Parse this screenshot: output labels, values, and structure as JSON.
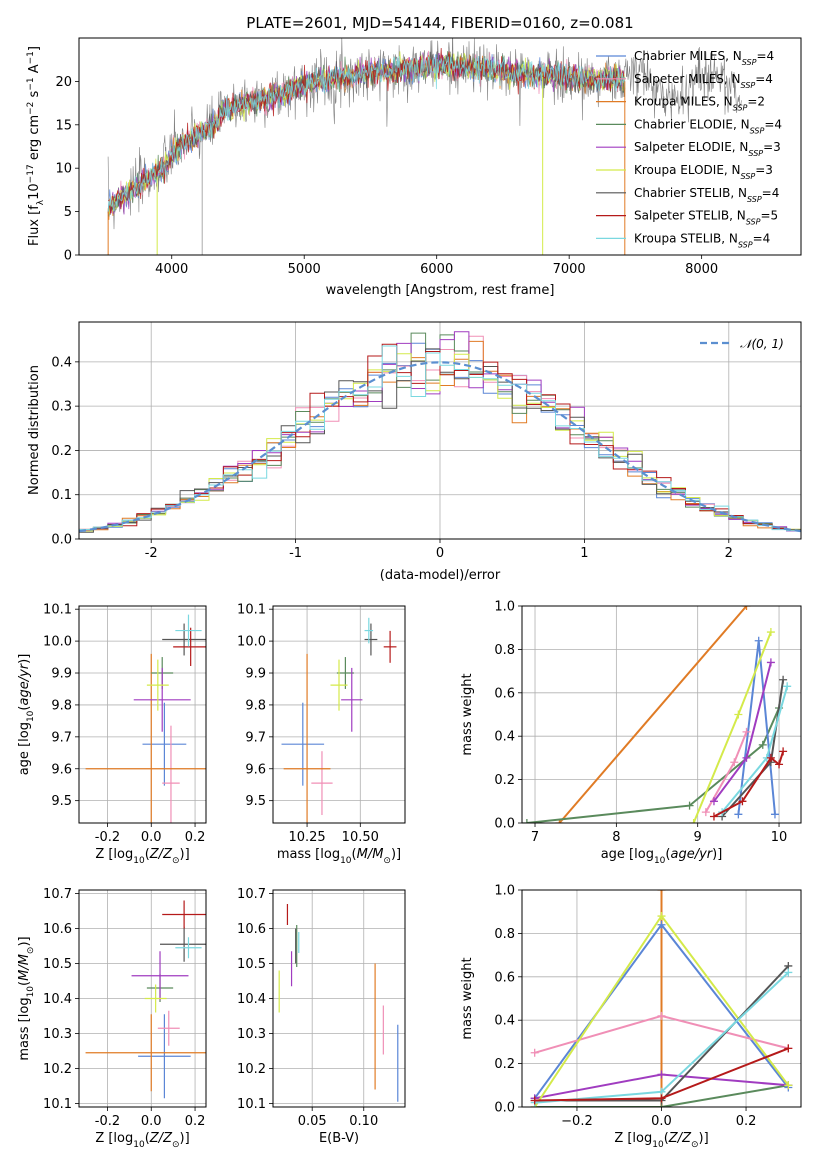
{
  "title": "PLATE=2601, MJD=54144, FIBERID=0160, z=0.081",
  "colors": {
    "chabrier_miles": "#5b86d6",
    "salpeter_miles": "#f08fb6",
    "kroupa_miles": "#e07b25",
    "chabrier_elodie": "#5a8a5c",
    "salpeter_elodie": "#a03cc0",
    "kroupa_elodie": "#d4ea4a",
    "chabrier_stelib": "#555555",
    "salpeter_stelib": "#b51a1a",
    "kroupa_stelib": "#7ad8e0",
    "normal": "#5b8fd0",
    "grid": "#b0b0b0"
  },
  "models": [
    "Chabrier MILES",
    "Salpeter MILES",
    "Kroupa MILES",
    "Chabrier ELODIE",
    "Salpeter ELODIE",
    "Kroupa ELODIE",
    "Chabrier STELIB",
    "Salpeter STELIB",
    "Kroupa STELIB"
  ],
  "chart_data": [
    {
      "id": "spectrum",
      "type": "line",
      "title": "PLATE=2601, MJD=54144, FIBERID=0160, z=0.081",
      "xlabel": "wavelength [Angstrom, rest frame]",
      "ylabel": "Flux [fλ10⁻¹⁷ erg cm⁻² s⁻¹ A⁻¹]",
      "xlim": [
        3300,
        8750
      ],
      "ylim": [
        0,
        25
      ],
      "xticks": [
        4000,
        5000,
        6000,
        7000,
        8000
      ],
      "yticks": [
        0,
        5,
        10,
        15,
        20
      ],
      "legend_position": "right",
      "grid": false,
      "legend": [
        "Chabrier MILES, N_SSP=4",
        "Salpeter MILES, N_SSP=4",
        "Kroupa MILES, N_SSP=2",
        "Chabrier ELODIE, N_SSP=4",
        "Salpeter ELODIE, N_SSP=3",
        "Kroupa ELODIE, N_SSP=3",
        "Chabrier STELIB, N_SSP=4",
        "Salpeter STELIB, N_SSP=5",
        "Kroupa STELIB, N_SSP=4"
      ],
      "continuum": {
        "x": [
          3520,
          3600,
          3700,
          3800,
          3900,
          4000,
          4100,
          4200,
          4300,
          4400,
          4500,
          4700,
          4900,
          5100,
          5300,
          5500,
          5700,
          5900,
          6100,
          6300,
          6500,
          6700,
          6900,
          7100,
          7300,
          7420
        ],
        "y": [
          5.5,
          6.5,
          7.5,
          8.5,
          9.5,
          11.5,
          13.0,
          13.8,
          14.8,
          16.5,
          17.3,
          18.0,
          19.0,
          20.0,
          20.5,
          21.0,
          21.3,
          21.7,
          21.9,
          21.5,
          21.2,
          20.8,
          20.7,
          20.3,
          20.2,
          20.1
        ]
      }
    },
    {
      "id": "residuals",
      "type": "area",
      "xlabel": "(data-model)/error",
      "ylabel": "Normed distribution",
      "xlim": [
        -2.5,
        2.5
      ],
      "ylim": [
        0,
        0.49
      ],
      "xticks": [
        -2,
        -1,
        0,
        1,
        2
      ],
      "yticks": [
        0.0,
        0.1,
        0.2,
        0.3,
        0.4
      ],
      "legend": [
        "𝒩(0, 1)"
      ],
      "legend_position": "top-right",
      "grid": true,
      "bin_width": 0.1
    },
    {
      "id": "age_vs_z",
      "type": "scatter",
      "xlabel": "Z [log10(Z/Z⊙)]",
      "ylabel": "age  [log10(age/yr)]",
      "xlim": [
        -0.33,
        0.25
      ],
      "ylim": [
        9.43,
        10.11
      ],
      "xticks": [
        -0.2,
        0.0,
        0.2
      ],
      "yticks": [
        9.5,
        9.6,
        9.7,
        9.8,
        9.9,
        10.0,
        10.1
      ],
      "grid": true,
      "points": [
        {
          "x": 0.06,
          "xerr": 0.1,
          "y": 9.677,
          "yerr": 0.13,
          "color": "#5b86d6"
        },
        {
          "x": 0.09,
          "xerr": 0.04,
          "y": 9.555,
          "yerr": 0.18,
          "color": "#f08fb6"
        },
        {
          "x": 0.0,
          "xerr": 0.3,
          "y": 9.6,
          "yerr": 0.36,
          "color": "#e07b25"
        },
        {
          "x": 0.05,
          "xerr": 0.05,
          "y": 9.9,
          "yerr": 0.05,
          "color": "#5a8a5c"
        },
        {
          "x": 0.05,
          "xerr": 0.13,
          "y": 9.816,
          "yerr": 0.1,
          "color": "#a03cc0"
        },
        {
          "x": 0.03,
          "xerr": 0.05,
          "y": 9.862,
          "yerr": 0.08,
          "color": "#d4ea4a"
        },
        {
          "x": 0.15,
          "xerr": 0.1,
          "y": 10.005,
          "yerr": 0.05,
          "color": "#555555"
        },
        {
          "x": 0.18,
          "xerr": 0.08,
          "y": 9.982,
          "yerr": 0.06,
          "color": "#b51a1a"
        },
        {
          "x": 0.17,
          "xerr": 0.06,
          "y": 10.033,
          "yerr": 0.05,
          "color": "#7ad8e0"
        }
      ]
    },
    {
      "id": "age_vs_mass",
      "type": "scatter",
      "xlabel": "mass [log10(M/M⊙)]",
      "xlim": [
        10.09,
        10.71
      ],
      "ylim": [
        9.43,
        10.11
      ],
      "xticks": [
        10.25,
        10.5
      ],
      "yticks": [
        9.5,
        9.6,
        9.7,
        9.8,
        9.9,
        10.0,
        10.1
      ],
      "grid": true,
      "points": [
        {
          "x": 10.23,
          "xerr": 0.1,
          "y": 9.677,
          "yerr": 0.13,
          "color": "#5b86d6"
        },
        {
          "x": 10.32,
          "xerr": 0.05,
          "y": 9.555,
          "yerr": 0.1,
          "color": "#f08fb6"
        },
        {
          "x": 10.25,
          "xerr": 0.11,
          "y": 9.6,
          "yerr": 0.36,
          "color": "#e07b25"
        },
        {
          "x": 10.43,
          "xerr": 0.04,
          "y": 9.9,
          "yerr": 0.05,
          "color": "#5a8a5c"
        },
        {
          "x": 10.46,
          "xerr": 0.05,
          "y": 9.816,
          "yerr": 0.1,
          "color": "#a03cc0"
        },
        {
          "x": 10.4,
          "xerr": 0.04,
          "y": 9.862,
          "yerr": 0.08,
          "color": "#d4ea4a"
        },
        {
          "x": 10.55,
          "xerr": 0.03,
          "y": 10.005,
          "yerr": 0.05,
          "color": "#555555"
        },
        {
          "x": 10.64,
          "xerr": 0.03,
          "y": 9.982,
          "yerr": 0.05,
          "color": "#b51a1a"
        },
        {
          "x": 10.54,
          "xerr": 0.02,
          "y": 10.033,
          "yerr": 0.04,
          "color": "#7ad8e0"
        }
      ]
    },
    {
      "id": "weights_vs_age",
      "type": "line",
      "xlabel": "age  [log10(age/yr)]",
      "ylabel": "mass weight",
      "xlim": [
        6.84,
        10.27
      ],
      "ylim": [
        0,
        1
      ],
      "xticks": [
        7,
        8,
        9,
        10
      ],
      "yticks": [
        0.0,
        0.2,
        0.4,
        0.6,
        0.8,
        1.0
      ],
      "grid": true,
      "series": [
        {
          "color": "#e07b25",
          "points": [
            [
              7.3,
              0.0
            ],
            [
              9.6,
              1.0
            ]
          ]
        },
        {
          "color": "#5a8a5c",
          "points": [
            [
              6.9,
              0.0
            ],
            [
              8.9,
              0.08
            ],
            [
              9.8,
              0.36
            ],
            [
              10.0,
              0.53
            ]
          ]
        },
        {
          "color": "#5b86d6",
          "points": [
            [
              9.5,
              0.04
            ],
            [
              9.75,
              0.84
            ],
            [
              9.95,
              0.04
            ]
          ]
        },
        {
          "color": "#f08fb6",
          "points": [
            [
              9.1,
              0.05
            ],
            [
              9.45,
              0.28
            ],
            [
              9.6,
              0.42
            ]
          ]
        },
        {
          "color": "#a03cc0",
          "points": [
            [
              9.2,
              0.1
            ],
            [
              9.6,
              0.3
            ],
            [
              9.9,
              0.74
            ]
          ]
        },
        {
          "color": "#d4ea4a",
          "points": [
            [
              8.95,
              0.0
            ],
            [
              9.5,
              0.5
            ],
            [
              9.9,
              0.88
            ]
          ]
        },
        {
          "color": "#555555",
          "points": [
            [
              9.3,
              0.03
            ],
            [
              9.9,
              0.28
            ],
            [
              10.05,
              0.66
            ]
          ]
        },
        {
          "color": "#7ad8e0",
          "points": [
            [
              9.3,
              0.05
            ],
            [
              9.85,
              0.3
            ],
            [
              10.1,
              0.63
            ]
          ]
        },
        {
          "color": "#b51a1a",
          "points": [
            [
              9.2,
              0.03
            ],
            [
              9.55,
              0.1
            ],
            [
              9.9,
              0.3
            ],
            [
              10.0,
              0.27
            ],
            [
              10.05,
              0.33
            ]
          ]
        }
      ]
    },
    {
      "id": "mass_vs_z",
      "type": "scatter",
      "xlabel": "Z [log10(Z/Z⊙)]",
      "ylabel": "mass [log10(M/M⊙)]",
      "xlim": [
        -0.33,
        0.25
      ],
      "ylim": [
        10.09,
        10.71
      ],
      "xticks": [
        -0.2,
        0.0,
        0.2
      ],
      "yticks": [
        10.1,
        10.2,
        10.3,
        10.4,
        10.5,
        10.6,
        10.7
      ],
      "grid": true,
      "points": [
        {
          "x": 0.06,
          "xerr": 0.12,
          "y": 10.235,
          "yerr": 0.12,
          "color": "#5b86d6"
        },
        {
          "x": 0.08,
          "xerr": 0.05,
          "y": 10.315,
          "yerr": 0.05,
          "color": "#f08fb6"
        },
        {
          "x": 0.0,
          "xerr": 0.3,
          "y": 10.245,
          "yerr": 0.11,
          "color": "#e07b25"
        },
        {
          "x": 0.04,
          "xerr": 0.06,
          "y": 10.43,
          "yerr": 0.04,
          "color": "#5a8a5c"
        },
        {
          "x": 0.04,
          "xerr": 0.13,
          "y": 10.465,
          "yerr": 0.07,
          "color": "#a03cc0"
        },
        {
          "x": 0.02,
          "xerr": 0.05,
          "y": 10.4,
          "yerr": 0.04,
          "color": "#d4ea4a"
        },
        {
          "x": 0.15,
          "xerr": 0.11,
          "y": 10.555,
          "yerr": 0.05,
          "color": "#555555"
        },
        {
          "x": 0.15,
          "xerr": 0.1,
          "y": 10.64,
          "yerr": 0.04,
          "color": "#b51a1a"
        },
        {
          "x": 0.17,
          "xerr": 0.06,
          "y": 10.545,
          "yerr": 0.03,
          "color": "#7ad8e0"
        }
      ]
    },
    {
      "id": "mass_vs_ebv",
      "type": "scatter",
      "xlabel": "E(B-V)",
      "xlim": [
        0.012,
        0.14
      ],
      "ylim": [
        10.09,
        10.71
      ],
      "xticks": [
        0.05,
        0.1
      ],
      "yticks": [
        10.1,
        10.2,
        10.3,
        10.4,
        10.5,
        10.6,
        10.7
      ],
      "grid": true,
      "points": [
        {
          "x": 0.133,
          "y": 10.215,
          "yerr": 0.11,
          "color": "#5b86d6"
        },
        {
          "x": 0.119,
          "y": 10.31,
          "yerr": 0.07,
          "color": "#f08fb6"
        },
        {
          "x": 0.111,
          "y": 10.32,
          "yerr": 0.18,
          "color": "#e07b25"
        },
        {
          "x": 0.035,
          "y": 10.55,
          "yerr": 0.06,
          "color": "#5a8a5c"
        },
        {
          "x": 0.03,
          "y": 10.485,
          "yerr": 0.05,
          "color": "#a03cc0"
        },
        {
          "x": 0.018,
          "y": 10.42,
          "yerr": 0.06,
          "color": "#d4ea4a"
        },
        {
          "x": 0.034,
          "y": 10.55,
          "yerr": 0.05,
          "color": "#555555"
        },
        {
          "x": 0.026,
          "y": 10.64,
          "yerr": 0.03,
          "color": "#b51a1a"
        },
        {
          "x": 0.037,
          "y": 10.56,
          "yerr": 0.03,
          "color": "#7ad8e0"
        }
      ]
    },
    {
      "id": "weights_vs_z",
      "type": "line",
      "xlabel": "Z [log10(Z/Z⊙)]",
      "ylabel": "mass weight",
      "xlim": [
        -0.33,
        0.33
      ],
      "ylim": [
        0,
        1
      ],
      "xticks": [
        -0.2,
        0.0,
        0.2
      ],
      "yticks": [
        0.0,
        0.2,
        0.4,
        0.6,
        0.8,
        1.0
      ],
      "grid": true,
      "series": [
        {
          "color": "#e07b25",
          "points": [
            [
              0.0,
              0.0
            ],
            [
              0.0,
              1.0
            ]
          ]
        },
        {
          "color": "#5a8a5c",
          "points": [
            [
              -0.3,
              0.0
            ],
            [
              0.0,
              0.0
            ],
            [
              0.3,
              0.1
            ]
          ]
        },
        {
          "color": "#5b86d6",
          "points": [
            [
              -0.3,
              0.04
            ],
            [
              0.0,
              0.84
            ],
            [
              0.3,
              0.09
            ]
          ]
        },
        {
          "color": "#f08fb6",
          "points": [
            [
              -0.3,
              0.25
            ],
            [
              0.0,
              0.42
            ],
            [
              0.3,
              0.27
            ]
          ]
        },
        {
          "color": "#a03cc0",
          "points": [
            [
              -0.3,
              0.04
            ],
            [
              0.0,
              0.15
            ],
            [
              0.3,
              0.1
            ]
          ]
        },
        {
          "color": "#d4ea4a",
          "points": [
            [
              -0.3,
              0.0
            ],
            [
              0.0,
              0.88
            ],
            [
              0.3,
              0.1
            ]
          ]
        },
        {
          "color": "#555555",
          "points": [
            [
              -0.3,
              0.03
            ],
            [
              0.0,
              0.03
            ],
            [
              0.3,
              0.65
            ]
          ]
        },
        {
          "color": "#7ad8e0",
          "points": [
            [
              -0.3,
              0.02
            ],
            [
              0.0,
              0.07
            ],
            [
              0.3,
              0.62
            ]
          ]
        },
        {
          "color": "#b51a1a",
          "points": [
            [
              -0.3,
              0.03
            ],
            [
              0.0,
              0.04
            ],
            [
              0.3,
              0.27
            ]
          ]
        }
      ]
    }
  ]
}
